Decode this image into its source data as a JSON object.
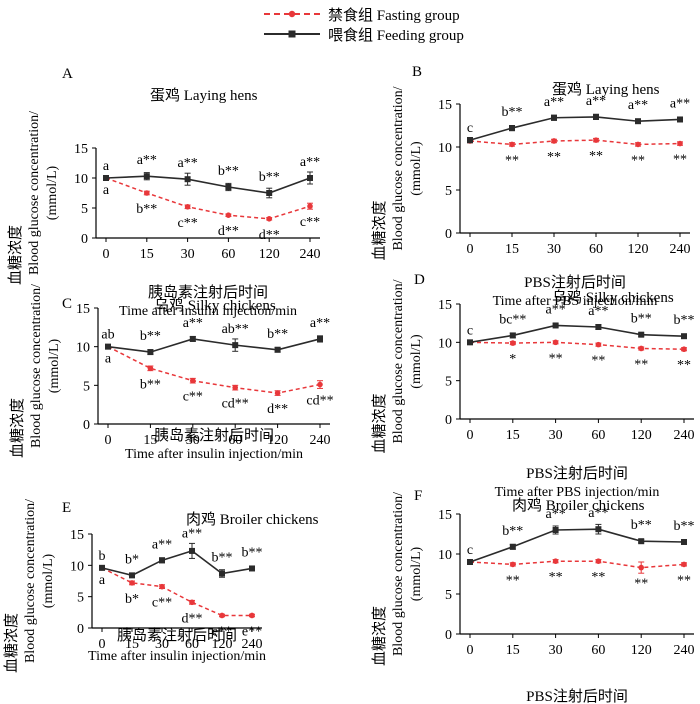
{
  "legend": {
    "fasting_label": "禁食组  Fasting group",
    "feeding_label": "喂食组  Feeding group",
    "fasting_color": "#e8373a",
    "feeding_color": "#2b2b2b"
  },
  "chart_data": [
    {
      "id": "A",
      "panel_letter": "A",
      "type": "line",
      "title": "蛋鸡 Laying hens",
      "ylabel_cn": "血糖浓度",
      "ylabel_en": "Blood glucose concentration/",
      "ylabel_unit": "(mmol/L)",
      "xlabel_cn": "胰岛素注射后时间",
      "xlabel_en": "Time after insulin injection/min",
      "categories": [
        "0",
        "15",
        "30",
        "60",
        "120",
        "240"
      ],
      "ylim": [
        0,
        15
      ],
      "yticks": [
        "0",
        "5",
        "10",
        "15"
      ],
      "grid": false,
      "series": [
        {
          "key": "feeding",
          "values": [
            10.0,
            10.3,
            9.8,
            8.5,
            7.5,
            10.0
          ],
          "errors": [
            0.3,
            0.6,
            1.0,
            0.6,
            0.8,
            1.0
          ],
          "labels": [
            "a",
            "a**",
            "a**",
            "b**",
            "b**",
            "a**"
          ]
        },
        {
          "key": "fasting",
          "values": [
            10.0,
            7.5,
            5.2,
            3.8,
            3.2,
            5.3
          ],
          "errors": [
            0.2,
            0.3,
            0.3,
            0.2,
            0.2,
            0.5
          ],
          "labels": [
            "a",
            "b**",
            "c**",
            "d**",
            "d**",
            "c**"
          ]
        }
      ]
    },
    {
      "id": "B",
      "panel_letter": "B",
      "type": "line",
      "title": "蛋鸡 Laying hens",
      "ylabel_cn": "血糖浓度",
      "ylabel_en": "Blood glucose concentration/",
      "ylabel_unit": "(mmol/L)",
      "xlabel_cn": "PBS注射后时间",
      "xlabel_en": "Time after PBS injection/min",
      "categories": [
        "0",
        "15",
        "30",
        "60",
        "120",
        "240"
      ],
      "ylim": [
        0,
        15
      ],
      "yticks": [
        "0",
        "5",
        "10",
        "15"
      ],
      "grid": false,
      "series": [
        {
          "key": "feeding",
          "values": [
            10.8,
            12.2,
            13.4,
            13.5,
            13.0,
            13.2
          ],
          "errors": [
            0.3,
            0.3,
            0.3,
            0.3,
            0.2,
            0.2
          ],
          "labels": [
            "c",
            "b**",
            "a**",
            "a**",
            "a**",
            "a**"
          ]
        },
        {
          "key": "fasting",
          "values": [
            10.7,
            10.3,
            10.7,
            10.8,
            10.3,
            10.4
          ],
          "errors": [
            0.2,
            0.2,
            0.2,
            0.2,
            0.2,
            0.2
          ],
          "labels": [
            "",
            "**",
            "**",
            "**",
            "**",
            "**"
          ]
        }
      ]
    },
    {
      "id": "C",
      "panel_letter": "C",
      "type": "line",
      "title": "乌鸡  Silky chickens",
      "ylabel_cn": "血糖浓度",
      "ylabel_en": "Blood glucose concentration/",
      "ylabel_unit": "(mmol/L)",
      "xlabel_cn": "胰岛素注射后时间",
      "xlabel_en": "Time after insulin injection/min",
      "categories": [
        "0",
        "15",
        "30",
        "60",
        "120",
        "240"
      ],
      "ylim": [
        0,
        15
      ],
      "yticks": [
        "0",
        "5",
        "10",
        "15"
      ],
      "grid": false,
      "series": [
        {
          "key": "feeding",
          "values": [
            10.0,
            9.3,
            11.0,
            10.2,
            9.6,
            11.0
          ],
          "errors": [
            0.3,
            0.3,
            0.3,
            0.8,
            0.3,
            0.4
          ],
          "labels": [
            "ab",
            "b**",
            "a**",
            "ab**",
            "b**",
            "a**"
          ]
        },
        {
          "key": "fasting",
          "values": [
            10.0,
            7.2,
            5.6,
            4.7,
            4.0,
            5.1
          ],
          "errors": [
            0.2,
            0.3,
            0.3,
            0.3,
            0.3,
            0.5
          ],
          "labels": [
            "a",
            "b**",
            "c**",
            "cd**",
            "d**",
            "cd**"
          ]
        }
      ]
    },
    {
      "id": "D",
      "panel_letter": "D",
      "type": "line",
      "title": "乌鸡  Silky chickens",
      "ylabel_cn": "血糖浓度",
      "ylabel_en": "Blood glucose concentration/",
      "ylabel_unit": "(mmol/L)",
      "xlabel_cn": "PBS注射后时间",
      "xlabel_en": "Time after PBS injection/min",
      "categories": [
        "0",
        "15",
        "30",
        "60",
        "120",
        "240"
      ],
      "ylim": [
        0,
        15
      ],
      "yticks": [
        "0",
        "5",
        "10",
        "15"
      ],
      "grid": false,
      "series": [
        {
          "key": "feeding",
          "values": [
            10.0,
            10.9,
            12.2,
            12.0,
            11.0,
            10.8
          ],
          "errors": [
            0.2,
            0.3,
            0.2,
            0.3,
            0.2,
            0.2
          ],
          "labels": [
            "c",
            "bc**",
            "a**",
            "a**",
            "b**",
            "b**"
          ]
        },
        {
          "key": "fasting",
          "values": [
            10.0,
            9.9,
            10.0,
            9.7,
            9.2,
            9.1
          ],
          "errors": [
            0.2,
            0.2,
            0.2,
            0.2,
            0.2,
            0.2
          ],
          "labels": [
            "",
            "*",
            "**",
            "**",
            "**",
            "**"
          ]
        }
      ]
    },
    {
      "id": "E",
      "panel_letter": "E",
      "type": "line",
      "title": "肉鸡 Broiler chickens",
      "ylabel_cn": "血糖浓度",
      "ylabel_en": "Blood glucose concentration/",
      "ylabel_unit": "(mmol/L)",
      "xlabel_cn": "胰岛素注射后时间",
      "xlabel_en": "Time after insulin injection/min",
      "categories": [
        "0",
        "15",
        "30",
        "60",
        "120",
        "240"
      ],
      "ylim": [
        0,
        15
      ],
      "yticks": [
        "0",
        "5",
        "10",
        "15"
      ],
      "grid": false,
      "series": [
        {
          "key": "feeding",
          "values": [
            9.6,
            8.4,
            10.8,
            12.3,
            8.7,
            9.5
          ],
          "errors": [
            0.3,
            0.3,
            0.4,
            1.2,
            0.6,
            0.3
          ],
          "labels": [
            "b",
            "b*",
            "a**",
            "a**",
            "b**",
            "b**"
          ]
        },
        {
          "key": "fasting",
          "values": [
            9.6,
            7.2,
            6.6,
            4.1,
            2.0,
            2.0
          ],
          "errors": [
            0.2,
            0.3,
            0.3,
            0.3,
            0.2,
            0.2
          ],
          "labels": [
            "a",
            "b*",
            "c**",
            "d**",
            "e**",
            "e**"
          ]
        }
      ]
    },
    {
      "id": "F",
      "panel_letter": "F",
      "type": "line",
      "title": "肉鸡 Broiler chickens",
      "ylabel_cn": "血糖浓度",
      "ylabel_en": "Blood glucose concentration/",
      "ylabel_unit": "(mmol/L)",
      "xlabel_cn": "PBS注射后时间",
      "xlabel_en": "Time after PBS injection/min",
      "categories": [
        "0",
        "15",
        "30",
        "60",
        "120",
        "240"
      ],
      "ylim": [
        0,
        15
      ],
      "yticks": [
        "0",
        "5",
        "10",
        "15"
      ],
      "grid": false,
      "series": [
        {
          "key": "feeding",
          "values": [
            9.0,
            10.9,
            13.0,
            13.1,
            11.6,
            11.5
          ],
          "errors": [
            0.2,
            0.3,
            0.5,
            0.6,
            0.2,
            0.2
          ],
          "labels": [
            "c",
            "b**",
            "a**",
            "a**",
            "b**",
            "b**"
          ]
        },
        {
          "key": "fasting",
          "values": [
            9.0,
            8.7,
            9.1,
            9.1,
            8.3,
            8.7
          ],
          "errors": [
            0.2,
            0.2,
            0.2,
            0.2,
            0.7,
            0.2
          ],
          "labels": [
            "",
            "**",
            "**",
            "**",
            "**",
            "**"
          ]
        }
      ]
    }
  ]
}
